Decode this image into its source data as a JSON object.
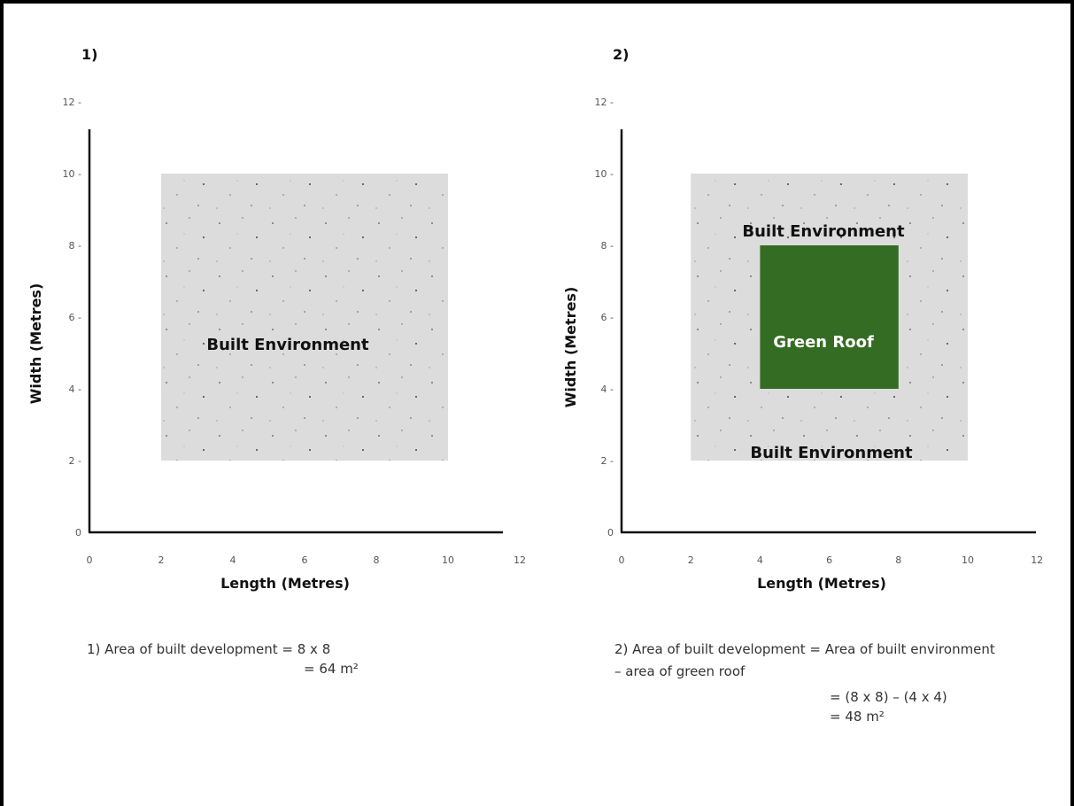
{
  "panels": [
    {
      "label": "1)",
      "xlabel": "Length (Metres)",
      "ylabel": "Width (Metres)",
      "x_ticks": [
        "0",
        "2",
        "4",
        "6",
        "8",
        "10",
        "12"
      ],
      "y_ticks": [
        "0",
        "2 -",
        "4 -",
        "6 -",
        "8 -",
        "10 -",
        "12 -"
      ],
      "regions": [
        {
          "name": "Built Environment",
          "x": [
            2,
            10
          ],
          "y": [
            2,
            10
          ],
          "color": "#dcdcdc"
        }
      ],
      "calc": [
        "1) Area of built development = 8 x 8",
        "= 64 m²"
      ]
    },
    {
      "label": "2)",
      "xlabel": "Length (Metres)",
      "ylabel": "Width (Metres)",
      "x_ticks": [
        "0",
        "2",
        "4",
        "6",
        "8",
        "10",
        "12"
      ],
      "y_ticks": [
        "0",
        "2 -",
        "4 -",
        "6 -",
        "8 -",
        "10 -",
        "12 -"
      ],
      "regions": [
        {
          "name": "Built Environment",
          "x": [
            2,
            10
          ],
          "y": [
            2,
            10
          ],
          "color": "#dcdcdc"
        },
        {
          "name": "Green Roof",
          "x": [
            4,
            8
          ],
          "y": [
            4,
            8
          ],
          "color": "#346c23"
        }
      ],
      "built_label_top": "Built Environment",
      "built_label_bottom": "Built Environment",
      "calc": [
        "2) Area of built development = Area of built environment",
        "– area of green roof",
        "= (8 x 8) – (4 x 4)",
        "= 48 m²"
      ]
    }
  ]
}
